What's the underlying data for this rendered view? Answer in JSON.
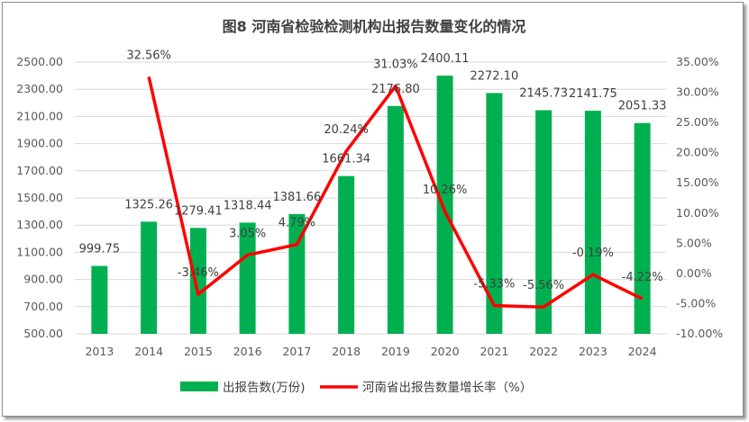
{
  "chart_data": {
    "type": "bar+line",
    "title": "图8  河南省检验检测机构出报告数量变化的情况",
    "categories": [
      "2013",
      "2014",
      "2015",
      "2016",
      "2017",
      "2018",
      "2019",
      "2020",
      "2021",
      "2022",
      "2023",
      "2024"
    ],
    "series": [
      {
        "name": "出报告数(万份)",
        "type": "bar",
        "axis": "left",
        "color": "#00b050",
        "values": [
          999.75,
          1325.26,
          1279.41,
          1318.44,
          1381.66,
          1661.34,
          2176.8,
          2400.11,
          2272.1,
          2145.73,
          2141.75,
          2051.33
        ],
        "labels": [
          "999.75",
          "1325.26",
          "1279.41",
          "1318.44",
          "1381.66",
          "1661.34",
          "2176.80",
          "2400.11",
          "2272.10",
          "2145.73",
          "2141.75",
          "2051.33"
        ]
      },
      {
        "name": "河南省出报告数量增长率（%）",
        "type": "line",
        "axis": "right",
        "color": "#ff0000",
        "values": [
          null,
          32.56,
          -3.46,
          3.05,
          4.79,
          20.24,
          31.03,
          10.26,
          -5.33,
          -5.56,
          -0.19,
          -4.22
        ],
        "labels": [
          "",
          "32.56%",
          "-3.46%",
          "3.05%",
          "4.79%",
          "20.24%",
          "31.03%",
          "10.26%",
          "-5.33%",
          "-5.56%",
          "-0.19%",
          "-4.22%"
        ]
      }
    ],
    "y_left": {
      "range": [
        500,
        2500
      ],
      "ticks": [
        "500.00",
        "700.00",
        "900.00",
        "1100.00",
        "1300.00",
        "1500.00",
        "1700.00",
        "1900.00",
        "2100.00",
        "2300.00",
        "2500.00"
      ]
    },
    "y_right": {
      "range": [
        -10,
        35
      ],
      "ticks": [
        "-10.00%",
        "-5.00%",
        "0.00%",
        "5.00%",
        "10.00%",
        "15.00%",
        "20.00%",
        "25.00%",
        "30.00%",
        "35.00%"
      ]
    },
    "grid": true,
    "legend": "bottom"
  }
}
